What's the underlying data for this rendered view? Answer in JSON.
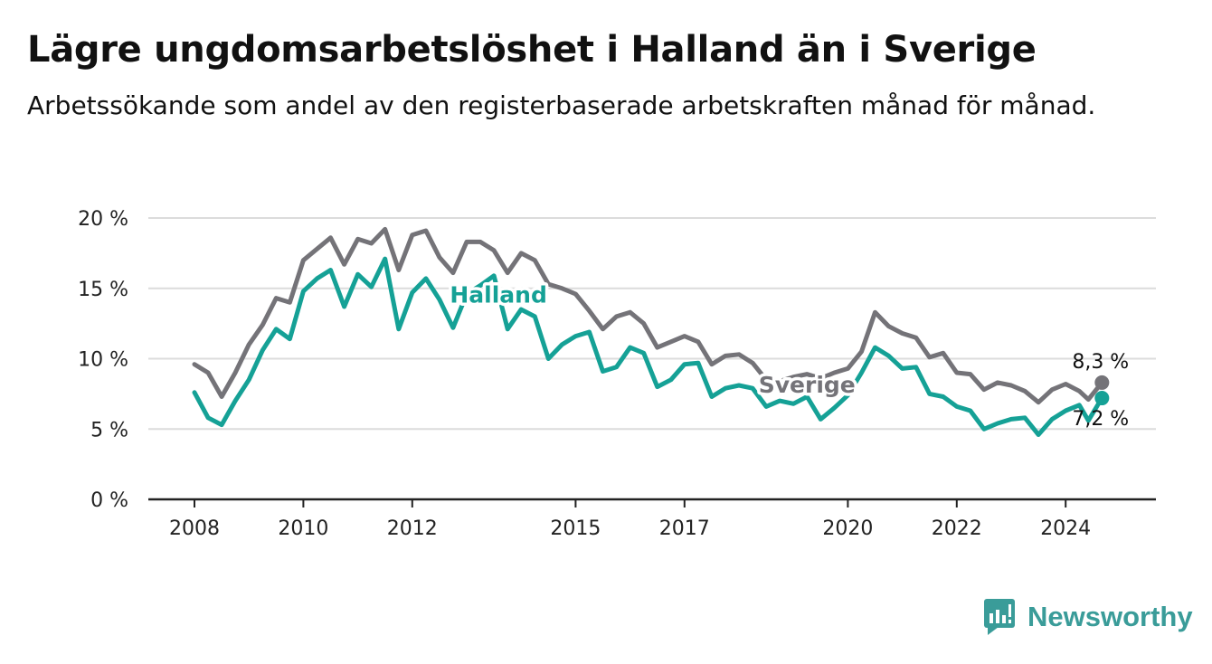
{
  "header": {
    "title": "Lägre ungdomsarbetslöshet i Halland än i Sverige",
    "subtitle": "Arbetssökande som andel av den registerbaserade arbetskraften månad för månad."
  },
  "brand": {
    "name": "Newsworthy",
    "color": "#3a9c99"
  },
  "colors": {
    "sverige": "#747378",
    "halland": "#15a196",
    "grid": "#dcdcdc",
    "axis": "#222222"
  },
  "chart_data": {
    "type": "line",
    "title": "Lägre ungdomsarbetslöshet i Halland än i Sverige",
    "subtitle": "Arbetssökande som andel av den registerbaserade arbetskraften månad för månad.",
    "xlabel": "",
    "ylabel": "",
    "x_ticks": [
      "2008",
      "2010",
      "2012",
      "2015",
      "2017",
      "2020",
      "2022",
      "2024"
    ],
    "y_ticks": [
      "0 %",
      "5 %",
      "10 %",
      "15 %",
      "20 %"
    ],
    "ylim": [
      0,
      20
    ],
    "xlim": [
      "2008-01",
      "2024-09"
    ],
    "grid": "horizontal",
    "legend": "direct labels on lines",
    "series": [
      {
        "name": "Sverige",
        "color": "#747378",
        "end_label": "8,3 %",
        "points": [
          [
            "2008-01",
            9.6
          ],
          [
            "2008-04",
            9.0
          ],
          [
            "2008-07",
            7.3
          ],
          [
            "2008-10",
            9.0
          ],
          [
            "2009-01",
            11.0
          ],
          [
            "2009-04",
            12.4
          ],
          [
            "2009-07",
            14.3
          ],
          [
            "2009-10",
            14.0
          ],
          [
            "2010-01",
            17.0
          ],
          [
            "2010-04",
            17.8
          ],
          [
            "2010-07",
            18.6
          ],
          [
            "2010-10",
            16.7
          ],
          [
            "2011-01",
            18.5
          ],
          [
            "2011-04",
            18.2
          ],
          [
            "2011-07",
            19.2
          ],
          [
            "2011-10",
            16.3
          ],
          [
            "2012-01",
            18.8
          ],
          [
            "2012-04",
            19.1
          ],
          [
            "2012-07",
            17.2
          ],
          [
            "2012-10",
            16.1
          ],
          [
            "2013-01",
            18.3
          ],
          [
            "2013-04",
            18.3
          ],
          [
            "2013-07",
            17.7
          ],
          [
            "2013-10",
            16.1
          ],
          [
            "2014-01",
            17.5
          ],
          [
            "2014-04",
            17.0
          ],
          [
            "2014-07",
            15.3
          ],
          [
            "2014-10",
            15.0
          ],
          [
            "2015-01",
            14.6
          ],
          [
            "2015-04",
            13.4
          ],
          [
            "2015-07",
            12.1
          ],
          [
            "2015-10",
            13.0
          ],
          [
            "2016-01",
            13.3
          ],
          [
            "2016-04",
            12.5
          ],
          [
            "2016-07",
            10.8
          ],
          [
            "2016-10",
            11.2
          ],
          [
            "2017-01",
            11.6
          ],
          [
            "2017-04",
            11.2
          ],
          [
            "2017-07",
            9.6
          ],
          [
            "2017-10",
            10.2
          ],
          [
            "2018-01",
            10.3
          ],
          [
            "2018-04",
            9.7
          ],
          [
            "2018-07",
            8.5
          ],
          [
            "2018-10",
            8.4
          ],
          [
            "2019-01",
            8.7
          ],
          [
            "2019-04",
            8.9
          ],
          [
            "2019-07",
            8.6
          ],
          [
            "2019-10",
            9.0
          ],
          [
            "2020-01",
            9.3
          ],
          [
            "2020-04",
            10.5
          ],
          [
            "2020-07",
            13.3
          ],
          [
            "2020-10",
            12.3
          ],
          [
            "2021-01",
            11.8
          ],
          [
            "2021-04",
            11.5
          ],
          [
            "2021-07",
            10.1
          ],
          [
            "2021-10",
            10.4
          ],
          [
            "2022-01",
            9.0
          ],
          [
            "2022-04",
            8.9
          ],
          [
            "2022-07",
            7.8
          ],
          [
            "2022-10",
            8.3
          ],
          [
            "2023-01",
            8.1
          ],
          [
            "2023-04",
            7.7
          ],
          [
            "2023-07",
            6.9
          ],
          [
            "2023-10",
            7.8
          ],
          [
            "2024-01",
            8.2
          ],
          [
            "2024-04",
            7.7
          ],
          [
            "2024-06",
            7.1
          ],
          [
            "2024-09",
            8.3
          ]
        ]
      },
      {
        "name": "Halland",
        "color": "#15a196",
        "end_label": "7,2 %",
        "points": [
          [
            "2008-01",
            7.6
          ],
          [
            "2008-04",
            5.8
          ],
          [
            "2008-07",
            5.3
          ],
          [
            "2008-10",
            7.0
          ],
          [
            "2009-01",
            8.5
          ],
          [
            "2009-04",
            10.6
          ],
          [
            "2009-07",
            12.1
          ],
          [
            "2009-10",
            11.4
          ],
          [
            "2010-01",
            14.8
          ],
          [
            "2010-04",
            15.7
          ],
          [
            "2010-07",
            16.3
          ],
          [
            "2010-10",
            13.7
          ],
          [
            "2011-01",
            16.0
          ],
          [
            "2011-04",
            15.1
          ],
          [
            "2011-07",
            17.1
          ],
          [
            "2011-10",
            12.1
          ],
          [
            "2012-01",
            14.7
          ],
          [
            "2012-04",
            15.7
          ],
          [
            "2012-07",
            14.2
          ],
          [
            "2012-10",
            12.2
          ],
          [
            "2013-01",
            14.6
          ],
          [
            "2013-04",
            15.2
          ],
          [
            "2013-07",
            15.9
          ],
          [
            "2013-10",
            12.1
          ],
          [
            "2014-01",
            13.5
          ],
          [
            "2014-04",
            13.0
          ],
          [
            "2014-07",
            10.0
          ],
          [
            "2014-10",
            11.0
          ],
          [
            "2015-01",
            11.6
          ],
          [
            "2015-04",
            11.9
          ],
          [
            "2015-07",
            9.1
          ],
          [
            "2015-10",
            9.4
          ],
          [
            "2016-01",
            10.8
          ],
          [
            "2016-04",
            10.4
          ],
          [
            "2016-07",
            8.0
          ],
          [
            "2016-10",
            8.5
          ],
          [
            "2017-01",
            9.6
          ],
          [
            "2017-04",
            9.7
          ],
          [
            "2017-07",
            7.3
          ],
          [
            "2017-10",
            7.9
          ],
          [
            "2018-01",
            8.1
          ],
          [
            "2018-04",
            7.9
          ],
          [
            "2018-07",
            6.6
          ],
          [
            "2018-10",
            7.0
          ],
          [
            "2019-01",
            6.8
          ],
          [
            "2019-04",
            7.3
          ],
          [
            "2019-07",
            5.7
          ],
          [
            "2019-10",
            6.5
          ],
          [
            "2020-01",
            7.4
          ],
          [
            "2020-04",
            9.0
          ],
          [
            "2020-07",
            10.8
          ],
          [
            "2020-10",
            10.2
          ],
          [
            "2021-01",
            9.3
          ],
          [
            "2021-04",
            9.4
          ],
          [
            "2021-07",
            7.5
          ],
          [
            "2021-10",
            7.3
          ],
          [
            "2022-01",
            6.6
          ],
          [
            "2022-04",
            6.3
          ],
          [
            "2022-07",
            5.0
          ],
          [
            "2022-10",
            5.4
          ],
          [
            "2023-01",
            5.7
          ],
          [
            "2023-04",
            5.8
          ],
          [
            "2023-07",
            4.6
          ],
          [
            "2023-10",
            5.7
          ],
          [
            "2024-01",
            6.3
          ],
          [
            "2024-04",
            6.7
          ],
          [
            "2024-06",
            5.6
          ],
          [
            "2024-09",
            7.2
          ]
        ]
      }
    ]
  }
}
